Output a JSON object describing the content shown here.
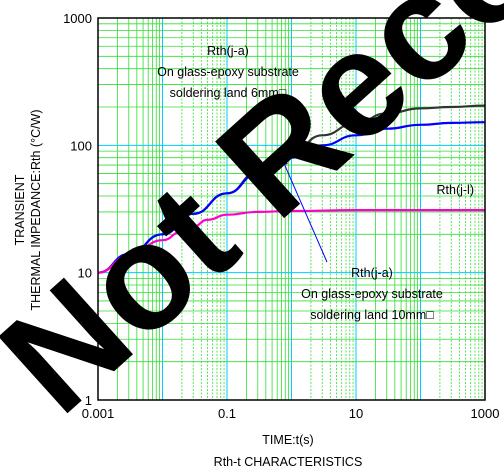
{
  "chart_data": {
    "type": "line",
    "title": "",
    "caption": "Rth-t CHARACTERISTICS",
    "xlabel": "TIME:t(s)",
    "ylabel_line1": "TRANSIENT",
    "ylabel_line2": "THERMAL IMPEDANCE:Rth (°C/W)",
    "xscale": "log",
    "yscale": "log",
    "xlim": [
      0.001,
      1000
    ],
    "ylim": [
      1,
      1000
    ],
    "xticks": [
      {
        "value": 0.001,
        "label": "0.001"
      },
      {
        "value": 0.1,
        "label": "0.1"
      },
      {
        "value": 10,
        "label": "10"
      },
      {
        "value": 1000,
        "label": "1000"
      }
    ],
    "yticks": [
      {
        "value": 1,
        "label": "1"
      },
      {
        "value": 10,
        "label": "10"
      },
      {
        "value": 100,
        "label": "100"
      },
      {
        "value": 1000,
        "label": "1000"
      }
    ],
    "grid": true,
    "series": [
      {
        "name": "Rth(j-a) On glass-epoxy substrate soldering land 6mm□",
        "color": "#333333",
        "x": [
          0.001,
          0.003,
          0.01,
          0.03,
          0.1,
          0.3,
          1,
          3,
          10,
          30,
          100,
          300,
          1000
        ],
        "y": [
          10,
          14,
          20,
          29,
          42,
          62,
          88,
          120,
          150,
          178,
          195,
          200,
          205
        ]
      },
      {
        "name": "Rth(j-a) On glass-epoxy substrate soldering land 10mm□",
        "color": "#0000ff",
        "x": [
          0.001,
          0.003,
          0.01,
          0.03,
          0.1,
          0.3,
          1,
          3,
          10,
          30,
          100,
          300,
          1000
        ],
        "y": [
          10,
          14,
          20,
          29,
          42,
          60,
          80,
          100,
          120,
          135,
          145,
          150,
          152
        ]
      },
      {
        "name": "Rth(j-l)",
        "color": "#ff00cc",
        "x": [
          0.001,
          0.003,
          0.01,
          0.02,
          0.03,
          0.05,
          0.1,
          0.3,
          1,
          10,
          100,
          1000
        ],
        "y": [
          10,
          13.5,
          18,
          21,
          23,
          26,
          28.5,
          30,
          30.5,
          31,
          31,
          31
        ]
      }
    ],
    "annotations": [
      {
        "lines": [
          "Rth(j-a)",
          "On glass-epoxy substrate",
          "soldering land 6mm□"
        ],
        "arrow_to": {
          "x": 15,
          "y": 160
        }
      },
      {
        "lines": [
          "Rth(j-a)",
          "On glass-epoxy substrate",
          "soldering land 10mm□"
        ],
        "arrow_to": {
          "x": 0.7,
          "y": 80
        }
      },
      {
        "lines": [
          "Rth(j-l)"
        ]
      }
    ],
    "watermark": "Not Recommended"
  }
}
